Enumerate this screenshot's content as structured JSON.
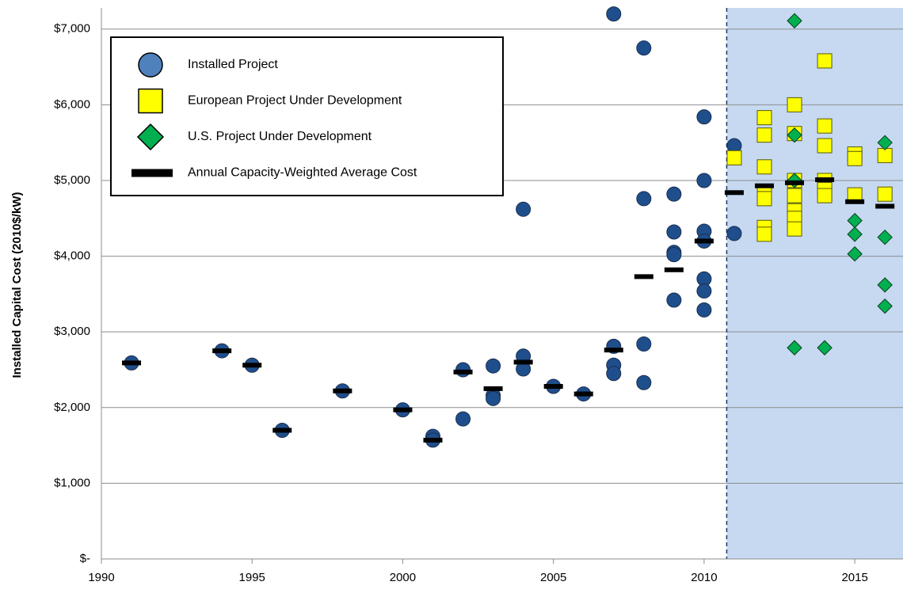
{
  "chart_data": {
    "type": "scatter",
    "y_label": "Installed Capital Cost (2010$/kW)",
    "xlim": [
      1990,
      2016.6
    ],
    "ylim": [
      0,
      7280
    ],
    "xticks": [
      1990,
      1995,
      2000,
      2005,
      2010,
      2015
    ],
    "yticks": [
      {
        "value": 0,
        "label": "$-"
      },
      {
        "value": 1000,
        "label": "$1,000"
      },
      {
        "value": 2000,
        "label": "$2,000"
      },
      {
        "value": 3000,
        "label": "$3,000"
      },
      {
        "value": 4000,
        "label": "$4,000"
      },
      {
        "value": 5000,
        "label": "$5,000"
      },
      {
        "value": 6000,
        "label": "$6,000"
      },
      {
        "value": 7000,
        "label": "$7,000"
      }
    ],
    "grid": true,
    "shade_from": 2010.75,
    "shade_color": "#c6d9f1",
    "legend": "upper left",
    "series": [
      {
        "name": "Installed Project",
        "marker": "circle",
        "color": "#1f4e8c",
        "x": [
          1991,
          1994,
          1995,
          1996,
          1998,
          2000,
          2001,
          2001,
          2002,
          2002,
          2003,
          2003,
          2003,
          2004,
          2004,
          2004,
          2005,
          2006,
          2007,
          2007,
          2007,
          2007,
          2008,
          2008,
          2008,
          2008,
          2009,
          2009,
          2009,
          2009,
          2009,
          2010,
          2010,
          2010,
          2010,
          2010,
          2010,
          2010,
          2011,
          2011
        ],
        "values": [
          2590,
          2750,
          2560,
          1700,
          2220,
          1970,
          1620,
          1570,
          2500,
          1850,
          2550,
          2160,
          2120,
          4620,
          2680,
          2510,
          2280,
          2180,
          7200,
          2810,
          2560,
          2450,
          6750,
          4760,
          2840,
          2330,
          4820,
          4320,
          4050,
          4020,
          3420,
          5840,
          5000,
          4330,
          4200,
          3700,
          3540,
          3290,
          5460,
          4300
        ]
      },
      {
        "name": "European Project Under Development",
        "marker": "square",
        "color": "#ffff00",
        "x": [
          2011,
          2012,
          2012,
          2012,
          2012,
          2012,
          2012,
          2012,
          2013,
          2013,
          2013,
          2013,
          2013,
          2013,
          2013,
          2014,
          2014,
          2014,
          2014,
          2014,
          2014,
          2015,
          2015,
          2015,
          2016,
          2016
        ],
        "values": [
          5300,
          5830,
          5600,
          5180,
          4850,
          4760,
          4380,
          4290,
          6000,
          5620,
          5000,
          4800,
          4600,
          4500,
          4360,
          6580,
          5720,
          5460,
          5000,
          4880,
          4800,
          5350,
          5290,
          4810,
          5330,
          4820
        ]
      },
      {
        "name": "U.S. Project Under Development",
        "marker": "diamond",
        "color": "#00b050",
        "x": [
          2013,
          2013,
          2013,
          2013,
          2014,
          2015,
          2015,
          2015,
          2016,
          2016,
          2016,
          2016
        ],
        "values": [
          7110,
          5600,
          5000,
          2790,
          2790,
          4470,
          4290,
          4030,
          5500,
          4250,
          3620,
          3340
        ]
      },
      {
        "name": "Annual Capacity-Weighted Average Cost",
        "marker": "dash",
        "color": "#000000",
        "x": [
          1991,
          1994,
          1995,
          1996,
          1998,
          2000,
          2001,
          2002,
          2003,
          2004,
          2005,
          2006,
          2007,
          2008,
          2009,
          2010,
          2011,
          2012,
          2013,
          2014,
          2015,
          2016
        ],
        "values": [
          2590,
          2750,
          2560,
          1700,
          2220,
          1970,
          1570,
          2470,
          2250,
          2600,
          2280,
          2180,
          2760,
          3730,
          3820,
          4200,
          4840,
          4930,
          4970,
          5010,
          4720,
          4660
        ]
      }
    ]
  }
}
